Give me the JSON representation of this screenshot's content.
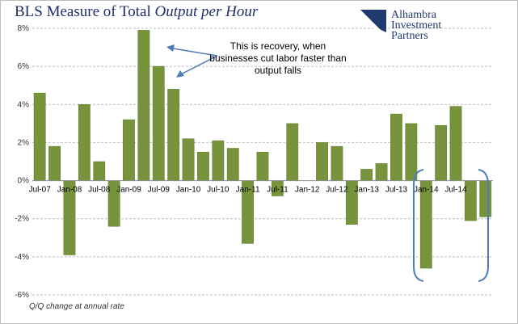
{
  "title": {
    "prefix": "BLS Measure of Total",
    "emph": "Output per Hour"
  },
  "logo": {
    "icon": "alhambra-swoosh-logo",
    "lines": [
      "Alhambra",
      "Investment",
      "Partners"
    ]
  },
  "annotation": {
    "lines": [
      "This is recovery, when",
      "businesses cut labor faster than",
      "output falls"
    ]
  },
  "footnote": "Q/Q change at annual rate",
  "colors": {
    "bar": "#77933c",
    "bar_stroke": "#5f7a2c",
    "grid": "#bfbfbf",
    "bracket": "#4f7db8",
    "arrow": "#4f7db8"
  },
  "chart_data": {
    "type": "bar",
    "ylim": [
      -6,
      8
    ],
    "yticks": [
      "-6%",
      "-4%",
      "-2%",
      "0%",
      "2%",
      "4%",
      "6%",
      "8%"
    ],
    "grid": true,
    "categories": [
      "Q3 2007",
      "Q4 2007",
      "Q1 2008",
      "Q2 2008",
      "Q3 2008",
      "Q4 2008",
      "Q1 2009",
      "Q2 2009",
      "Q3 2009",
      "Q4 2009",
      "Q1 2010",
      "Q2 2010",
      "Q3 2010",
      "Q4 2010",
      "Q1 2011",
      "Q2 2011",
      "Q3 2011",
      "Q4 2011",
      "Q1 2012",
      "Q2 2012",
      "Q3 2012",
      "Q4 2012",
      "Q1 2013",
      "Q2 2013",
      "Q3 2013",
      "Q4 2013",
      "Q1 2014",
      "Q2 2014",
      "Q3 2014",
      "Q4 2014",
      "Q1 2015"
    ],
    "tick_labels": [
      "Jul-07",
      "Jan-08",
      "Jul-08",
      "Jan-09",
      "Jul-09",
      "Jan-10",
      "Jul-10",
      "Jan-11",
      "Jul-11",
      "Jan-12",
      "Jul-12",
      "Jan-13",
      "Jul-13",
      "Jan-14",
      "Jul-14"
    ],
    "tick_positions": [
      0,
      2,
      4,
      6,
      8,
      10,
      12,
      14,
      16,
      18,
      20,
      22,
      24,
      26,
      28
    ],
    "values": [
      4.6,
      1.8,
      -3.9,
      4.0,
      1.0,
      -2.4,
      3.2,
      7.9,
      6.0,
      4.8,
      2.2,
      1.5,
      2.1,
      1.7,
      -3.3,
      1.5,
      -0.8,
      3.0,
      0.0,
      2.0,
      1.8,
      -2.3,
      0.6,
      0.9,
      3.5,
      3.0,
      -4.6,
      2.9,
      3.9,
      -2.1,
      -1.9
    ],
    "xlabel": "",
    "ylabel": ""
  }
}
